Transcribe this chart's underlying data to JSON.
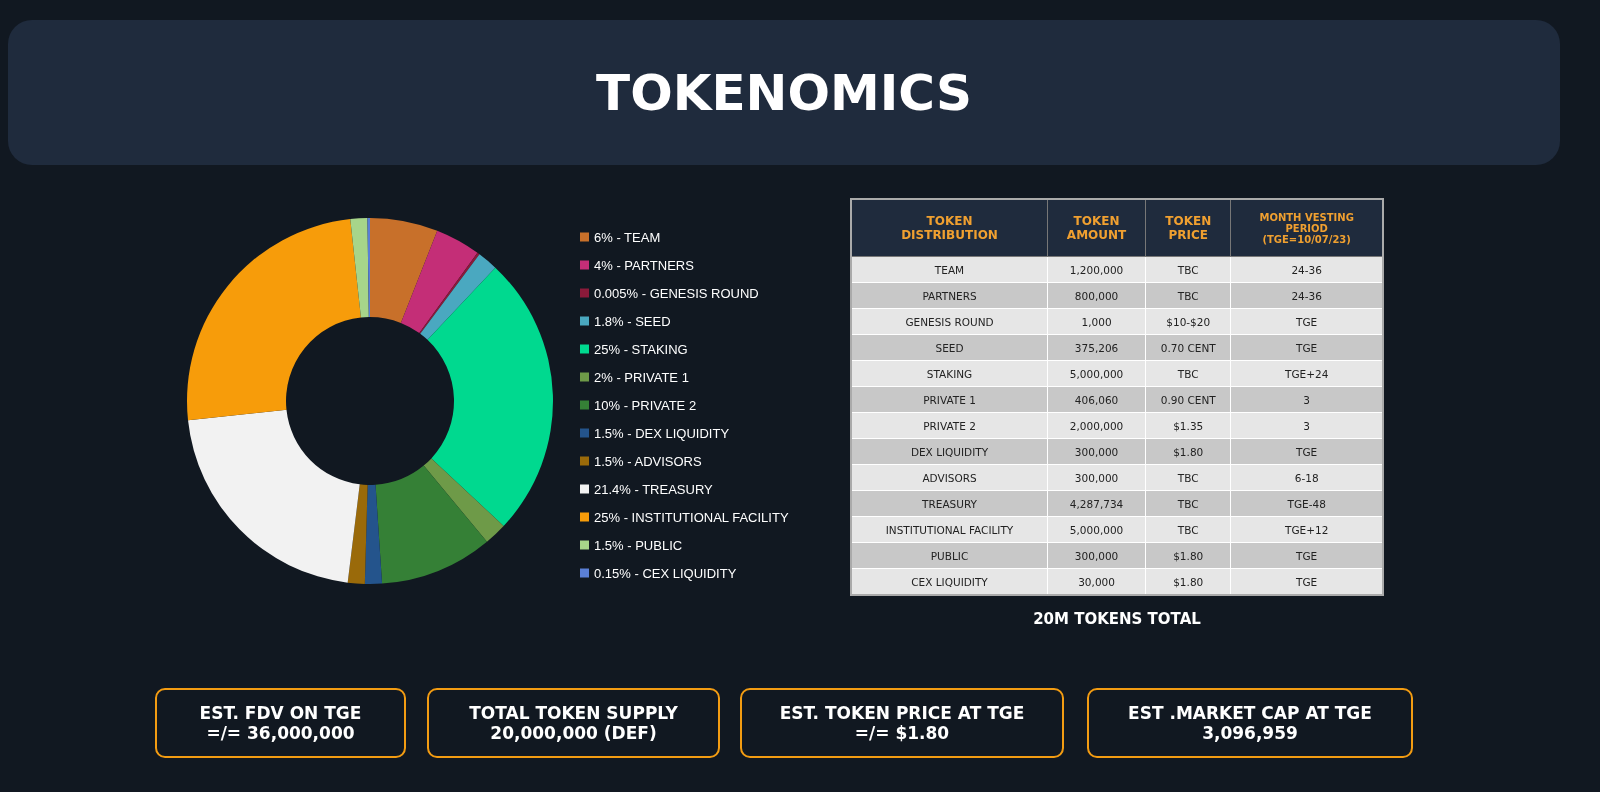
{
  "chart_data": [
    {
      "type": "donut",
      "title": "TOKENOMICS",
      "legend": "right",
      "categories": [
        "6% - TEAM",
        "4% - PARTNERS",
        "0.005% - GENESIS ROUND",
        "1.8% - SEED",
        "25% - STAKING",
        "2% - PRIVATE 1",
        "10% - PRIVATE 2",
        "1.5% - DEX LIQUIDITY",
        "1.5% - ADVISORS",
        "21.4% - TREASURY",
        "25% - INSTITUTIONAL FACILITY",
        "1.5% - PUBLIC",
        "0.15% - CEX LIQUIDITY"
      ],
      "values": [
        6,
        4,
        0.005,
        1.8,
        25,
        2,
        10,
        1.5,
        1.5,
        21.4,
        25,
        1.5,
        0.15
      ],
      "colors": [
        "#c8702a",
        "#c42e77",
        "#8b1a3a",
        "#4aa8c0",
        "#00d98f",
        "#6e9a48",
        "#358036",
        "#24548c",
        "#9a6a0a",
        "#f2f2f2",
        "#f79c0a",
        "#a7d58a",
        "#5a7fd6"
      ]
    },
    {
      "type": "other",
      "categories": [
        "TOKEN\nDISTRIBUTION",
        "TOKEN\nAMOUNT",
        "TOKEN\nPRICE",
        "MONTH VESTING\nPERIOD\n(TGE=10/07/23)"
      ],
      "cell_labels": [
        [
          "TEAM",
          "1,200,000",
          "TBC",
          "24-36"
        ],
        [
          "PARTNERS",
          "800,000",
          "TBC",
          "24-36"
        ],
        [
          "GENESIS ROUND",
          "1,000",
          "$10-$20",
          "TGE"
        ],
        [
          "SEED",
          "375,206",
          "0.70 CENT",
          "TGE"
        ],
        [
          "STAKING",
          "5,000,000",
          "TBC",
          "TGE+24"
        ],
        [
          "PRIVATE 1",
          "406,060",
          "0.90 CENT",
          "3"
        ],
        [
          "PRIVATE 2",
          "2,000,000",
          "$1.35",
          "3"
        ],
        [
          "DEX LIQUIDITY",
          "300,000",
          "$1.80",
          "TGE"
        ],
        [
          "ADVISORS",
          "300,000",
          "TBC",
          "6-18"
        ],
        [
          "TREASURY",
          "4,287,734",
          "TBC",
          "TGE-48"
        ],
        [
          "INSTITUTIONAL FACILITY",
          "5,000,000",
          "TBC",
          "TGE+12"
        ],
        [
          "PUBLIC",
          "300,000",
          "$1.80",
          "TGE"
        ],
        [
          "CEX LIQUIDITY",
          "30,000",
          "$1.80",
          "TGE"
        ]
      ],
      "annotations": [
        "20M TOKENS TOTAL"
      ]
    },
    {
      "type": "other",
      "annotations": [
        "EST. FDV ON TGE\n=/= 36,000,000",
        "TOTAL TOKEN SUPPLY\n20,000,000 (DEF)",
        "EST. TOKEN PRICE AT TGE\n=/= $1.80",
        "EST .MARKET CAP AT TGE\n3,096,959"
      ]
    }
  ]
}
